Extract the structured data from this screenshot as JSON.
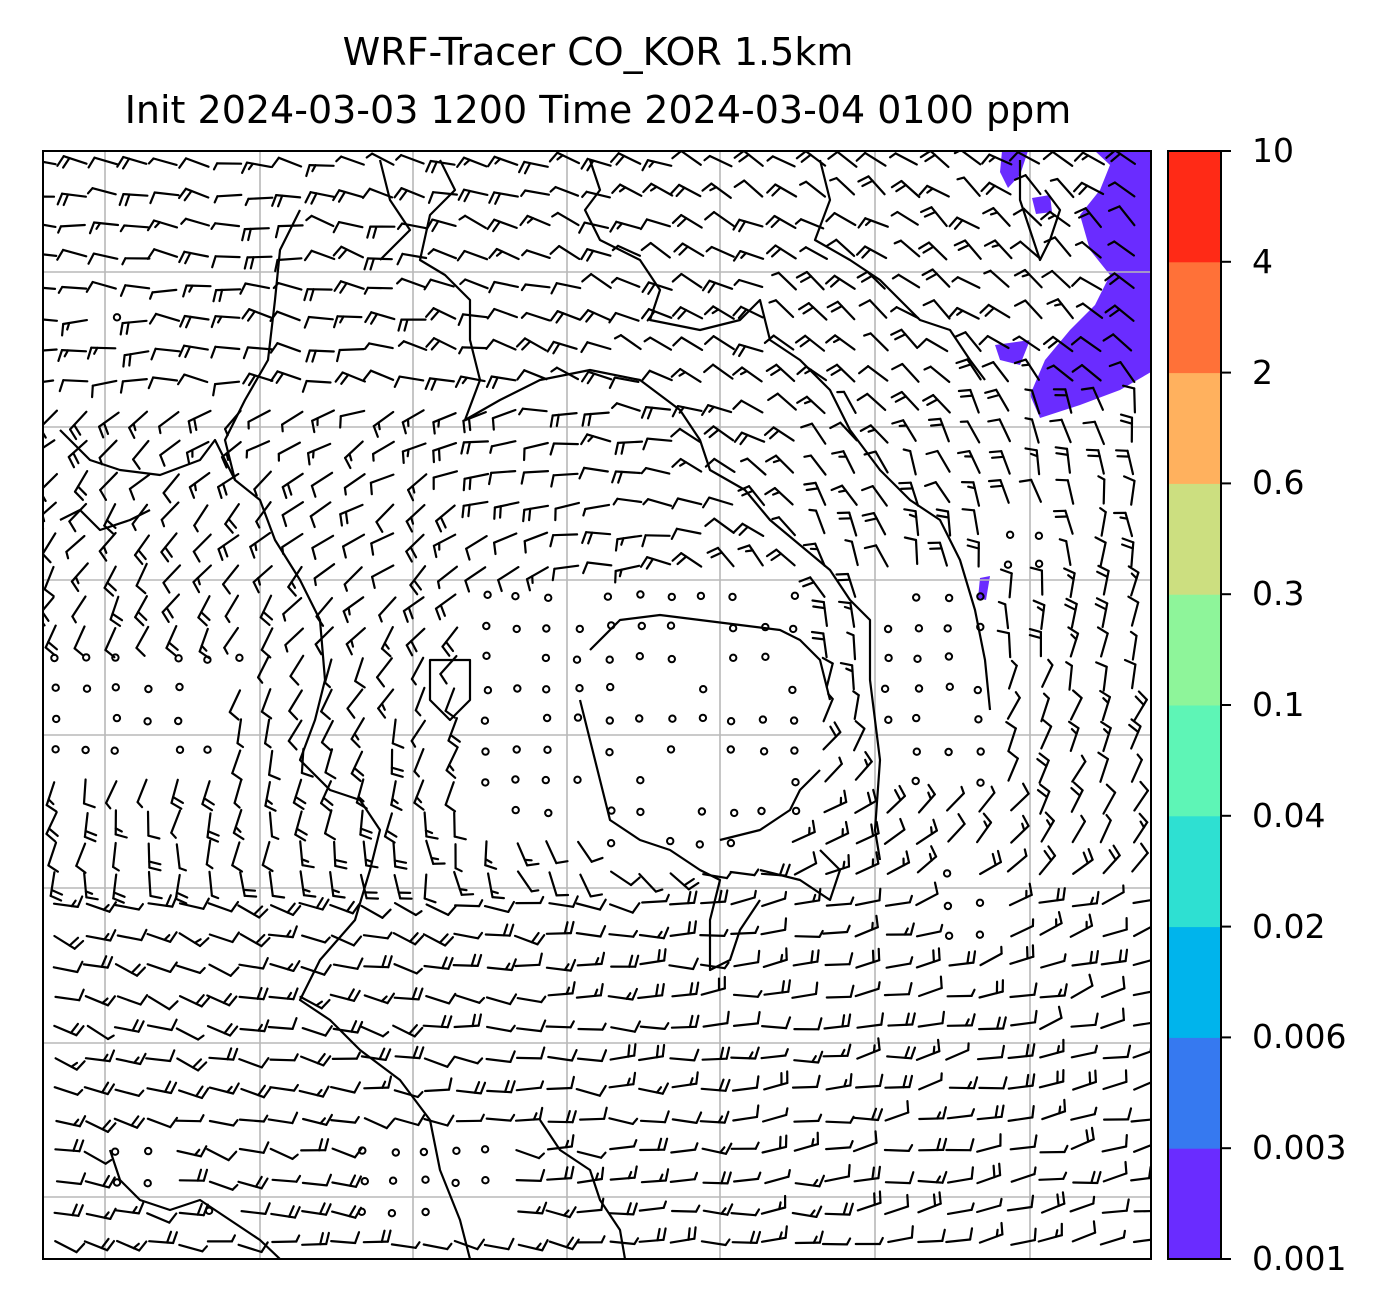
{
  "title_line1": "WRF-Tracer CO_KOR 1.5km",
  "title_line2": "Init 2024-03-03 1200 Time 2024-03-04 0100 ppm",
  "colorbar": {
    "levels": [
      "0.001",
      "0.003",
      "0.006",
      "0.02",
      "0.04",
      "0.1",
      "0.3",
      "0.6",
      "2",
      "4",
      "10"
    ],
    "colors": [
      "#6a2cff",
      "#3679f0",
      "#00b4ec",
      "#2ee0d2",
      "#5ef5b6",
      "#8ef59a",
      "#ccdf80",
      "#ffb15e",
      "#ff7138",
      "#ff2a16"
    ]
  },
  "plume_color": "#6a2cff",
  "gridline_color": "#b8b8b8"
}
